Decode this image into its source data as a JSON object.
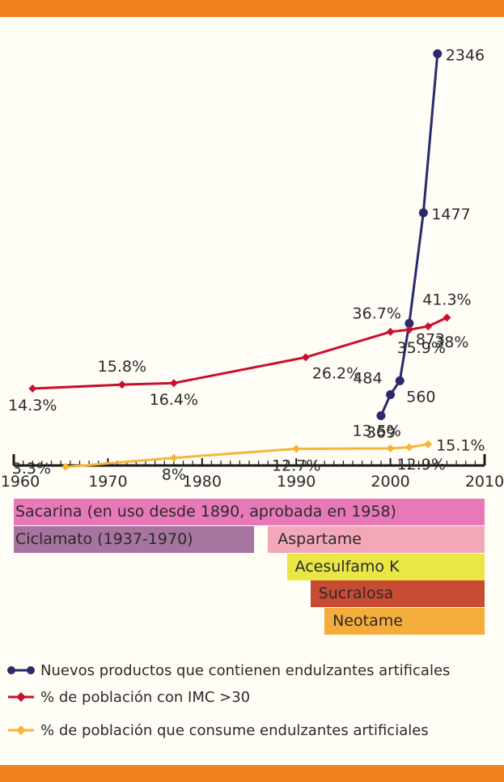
{
  "chart_data": {
    "type": "line",
    "xlim": [
      1960,
      2010
    ],
    "x_ticks": [
      1960,
      1970,
      1980,
      1990,
      2000,
      2010
    ],
    "series": [
      {
        "name": "Nuevos productos que contienen endulzantes artificales",
        "color": "#2b2a6b",
        "marker": "circle",
        "x": [
          1999,
          2000,
          2001,
          2002,
          2003.5,
          2005
        ],
        "y": [
          369,
          484,
          560,
          873,
          1477,
          2346
        ],
        "labels": [
          "369",
          "484",
          "560",
          "873",
          "1477",
          "2346"
        ]
      },
      {
        "name": "% de población con IMC >30",
        "color": "#c8102e",
        "marker": "diamond",
        "x": [
          1962,
          1971.5,
          1977,
          1991,
          2000,
          2002,
          2004,
          2006
        ],
        "y": [
          14.3,
          15.8,
          16.4,
          26.2,
          35.9,
          36.7,
          38,
          41.3
        ],
        "labels": [
          "14.3%",
          "15.8%",
          "16.4%",
          "26.2%",
          "35.9%",
          "36.7%",
          "38%",
          "41.3%"
        ]
      },
      {
        "name": "% de población que consume endulzantes artificiales",
        "color": "#f7b539",
        "marker": "diamond",
        "x": [
          1965.5,
          1977,
          1990,
          2000,
          2002,
          2004
        ],
        "y": [
          3.3,
          8,
          12.7,
          12.9,
          13.5,
          15.1
        ],
        "labels": [
          "3.3%",
          "8%",
          "12.7%",
          "12.9%",
          "13.5%",
          "15.1%"
        ]
      }
    ]
  },
  "sweeteners": [
    {
      "label": "Sacarina (en uso desde 1890, aprobada en 1958)",
      "start": 1960,
      "end": 2010,
      "color": "#e879b8"
    },
    {
      "label": "Ciclamato (1937-1970)",
      "start": 1960,
      "end": 1985.5,
      "color": "#a6749e"
    },
    {
      "label": "Aspartame",
      "start": 1987,
      "end": 2010,
      "color": "#f2a8b8"
    },
    {
      "label": "Acesulfamo K",
      "start": 1989,
      "end": 2010,
      "color": "#e9e646"
    },
    {
      "label": "Sucralosa",
      "start": 1991.5,
      "end": 2010,
      "color": "#c84b34"
    },
    {
      "label": "Neotame",
      "start": 1993,
      "end": 2010,
      "color": "#f4ad3a"
    }
  ],
  "legend": [
    {
      "label": "Nuevos productos que contienen endulzantes artificales",
      "color": "#2b2a6b",
      "marker": "circle"
    },
    {
      "label": "% de población con IMC >30",
      "color": "#c8102e",
      "marker": "diamond"
    },
    {
      "label": "% de población que consume endulzantes artificiales",
      "color": "#f7b539",
      "marker": "diamond"
    }
  ]
}
